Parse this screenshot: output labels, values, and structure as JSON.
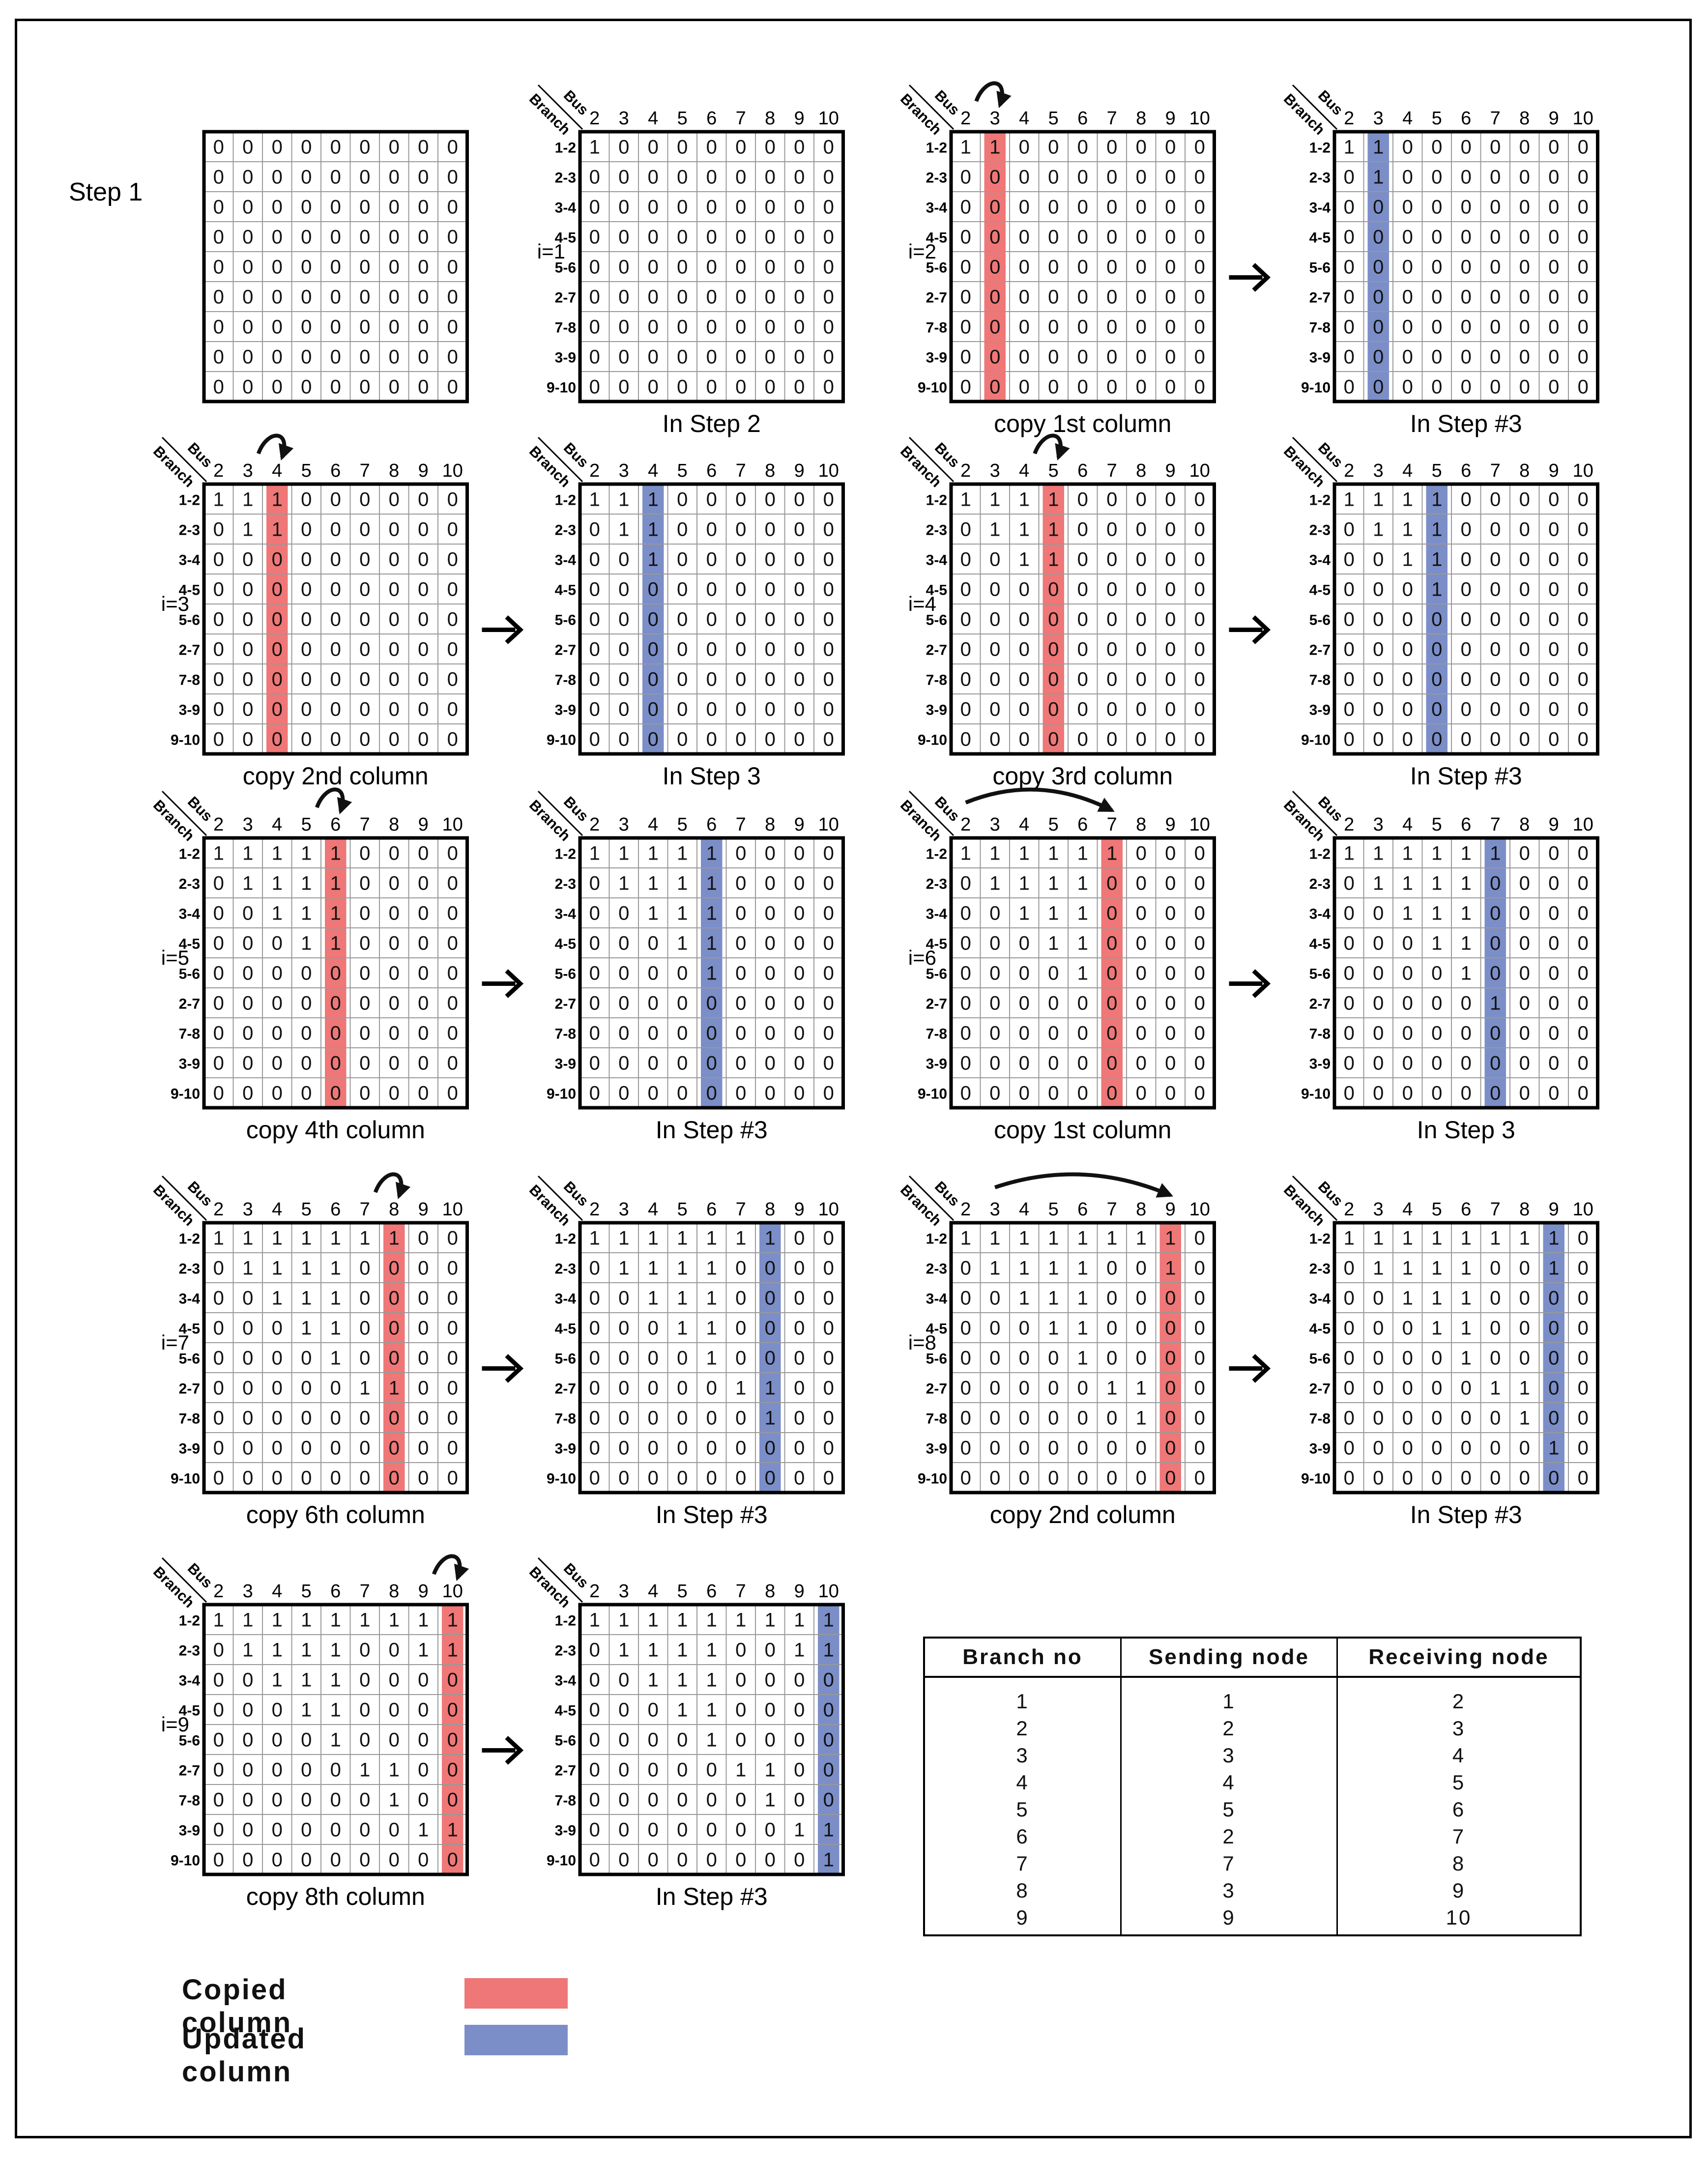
{
  "figure": {
    "step1_label": "Step 1",
    "bus_label": "Bus",
    "branch_label": "Branch",
    "bus_numbers": [
      "2",
      "3",
      "4",
      "5",
      "6",
      "7",
      "8",
      "9",
      "10"
    ],
    "branch_labels": [
      "1-2",
      "2-3",
      "3-4",
      "4-5",
      "5-6",
      "2-7",
      "7-8",
      "3-9",
      "9-10"
    ],
    "cell_values": {
      "zero": "0",
      "one": "1"
    }
  },
  "matrices": [
    {
      "id": "step1",
      "row": 0,
      "col": 0,
      "i": "",
      "caption": "",
      "axes": false,
      "highlight": null,
      "hl_type": null,
      "curve": null,
      "rows": [
        "000000000",
        "000000000",
        "000000000",
        "000000000",
        "000000000",
        "000000000",
        "000000000",
        "000000000",
        "000000000"
      ]
    },
    {
      "id": "i1",
      "row": 0,
      "col": 1,
      "i": "i=1",
      "caption": "In Step 2",
      "axes": true,
      "highlight": null,
      "hl_type": null,
      "curve": null,
      "rows": [
        "100000000",
        "000000000",
        "000000000",
        "000000000",
        "000000000",
        "000000000",
        "000000000",
        "000000000",
        "000000000"
      ]
    },
    {
      "id": "i2-copy",
      "row": 0,
      "col": 2,
      "i": "i=2",
      "caption": "copy 1st column",
      "axes": true,
      "highlight": 1,
      "hl_type": "copied",
      "curve": [
        1,
        1
      ],
      "rows": [
        "110000000",
        "000000000",
        "000000000",
        "000000000",
        "000000000",
        "000000000",
        "000000000",
        "000000000",
        "000000000"
      ]
    },
    {
      "id": "i2-upd",
      "row": 0,
      "col": 3,
      "i": "",
      "caption": "In Step #3",
      "axes": true,
      "highlight": 1,
      "hl_type": "updated",
      "curve": null,
      "rows": [
        "110000000",
        "010000000",
        "000000000",
        "000000000",
        "000000000",
        "000000000",
        "000000000",
        "000000000",
        "000000000"
      ]
    },
    {
      "id": "i3-copy",
      "row": 1,
      "col": 0,
      "i": "i=3",
      "caption": "copy 2nd column",
      "axes": true,
      "highlight": 2,
      "hl_type": "copied",
      "curve": [
        2,
        2
      ],
      "rows": [
        "111000000",
        "011000000",
        "000000000",
        "000000000",
        "000000000",
        "000000000",
        "000000000",
        "000000000",
        "000000000"
      ]
    },
    {
      "id": "i3-upd",
      "row": 1,
      "col": 1,
      "i": "",
      "caption": "In Step 3",
      "axes": true,
      "highlight": 2,
      "hl_type": "updated",
      "curve": null,
      "rows": [
        "111000000",
        "011000000",
        "001000000",
        "000000000",
        "000000000",
        "000000000",
        "000000000",
        "000000000",
        "000000000"
      ]
    },
    {
      "id": "i4-copy",
      "row": 1,
      "col": 2,
      "i": "i=4",
      "caption": "copy 3rd column",
      "axes": true,
      "highlight": 3,
      "hl_type": "copied",
      "curve": [
        3,
        3
      ],
      "rows": [
        "111100000",
        "011100000",
        "001100000",
        "000000000",
        "000000000",
        "000000000",
        "000000000",
        "000000000",
        "000000000"
      ]
    },
    {
      "id": "i4-upd",
      "row": 1,
      "col": 3,
      "i": "",
      "caption": "In Step #3",
      "axes": true,
      "highlight": 3,
      "hl_type": "updated",
      "curve": null,
      "rows": [
        "111100000",
        "011100000",
        "001100000",
        "000100000",
        "000000000",
        "000000000",
        "000000000",
        "000000000",
        "000000000"
      ]
    },
    {
      "id": "i5-copy",
      "row": 2,
      "col": 0,
      "i": "i=5",
      "caption": "copy 4th column",
      "axes": true,
      "highlight": 4,
      "hl_type": "copied",
      "curve": [
        4,
        4
      ],
      "rows": [
        "111110000",
        "011110000",
        "001110000",
        "000110000",
        "000000000",
        "000000000",
        "000000000",
        "000000000",
        "000000000"
      ]
    },
    {
      "id": "i5-upd",
      "row": 2,
      "col": 1,
      "i": "",
      "caption": "In Step #3",
      "axes": true,
      "highlight": 4,
      "hl_type": "updated",
      "curve": null,
      "rows": [
        "111110000",
        "011110000",
        "001110000",
        "000110000",
        "000010000",
        "000000000",
        "000000000",
        "000000000",
        "000000000"
      ]
    },
    {
      "id": "i6-copy",
      "row": 2,
      "col": 2,
      "i": "i=6",
      "caption": "copy 1st column",
      "axes": true,
      "highlight": 5,
      "hl_type": "copied",
      "curve": [
        0,
        5
      ],
      "rows": [
        "111111000",
        "011110000",
        "001110000",
        "000110000",
        "000010000",
        "000000000",
        "000000000",
        "000000000",
        "000000000"
      ]
    },
    {
      "id": "i6-upd",
      "row": 2,
      "col": 3,
      "i": "",
      "caption": "In Step 3",
      "axes": true,
      "highlight": 5,
      "hl_type": "updated",
      "curve": null,
      "rows": [
        "111111000",
        "011110000",
        "001110000",
        "000110000",
        "000010000",
        "000001000",
        "000000000",
        "000000000",
        "000000000"
      ]
    },
    {
      "id": "i7-copy",
      "row": 3,
      "col": 0,
      "i": "i=7",
      "caption": "copy 6th column",
      "axes": true,
      "highlight": 6,
      "hl_type": "copied",
      "curve": [
        6,
        6
      ],
      "rows": [
        "111111100",
        "011110000",
        "001110000",
        "000110000",
        "000010000",
        "000001100",
        "000000000",
        "000000000",
        "000000000"
      ]
    },
    {
      "id": "i7-upd",
      "row": 3,
      "col": 1,
      "i": "",
      "caption": "In Step #3",
      "axes": true,
      "highlight": 6,
      "hl_type": "updated",
      "curve": null,
      "rows": [
        "111111100",
        "011110000",
        "001110000",
        "000110000",
        "000010000",
        "000001100",
        "000000100",
        "000000000",
        "000000000"
      ]
    },
    {
      "id": "i8-copy",
      "row": 3,
      "col": 2,
      "i": "i=8",
      "caption": "copy 2nd column",
      "axes": true,
      "highlight": 7,
      "hl_type": "copied",
      "curve": [
        1,
        7
      ],
      "rows": [
        "111111110",
        "011110010",
        "001110000",
        "000110000",
        "000010000",
        "000001100",
        "000000100",
        "000000000",
        "000000000"
      ]
    },
    {
      "id": "i8-upd",
      "row": 3,
      "col": 3,
      "i": "",
      "caption": "In Step #3",
      "axes": true,
      "highlight": 7,
      "hl_type": "updated",
      "curve": null,
      "rows": [
        "111111110",
        "011110010",
        "001110000",
        "000110000",
        "000010000",
        "000001100",
        "000000100",
        "000000010",
        "000000000"
      ]
    },
    {
      "id": "i9-copy",
      "row": 4,
      "col": 0,
      "i": "i=9",
      "caption": "copy 8th column",
      "axes": true,
      "highlight": 8,
      "hl_type": "copied",
      "curve": [
        8,
        8
      ],
      "rows": [
        "111111111",
        "011110011",
        "001110000",
        "000110000",
        "000010000",
        "000001100",
        "000000100",
        "000000011",
        "000000000"
      ]
    },
    {
      "id": "i9-upd",
      "row": 4,
      "col": 1,
      "i": "",
      "caption": "In Step #3",
      "axes": true,
      "highlight": 8,
      "hl_type": "updated",
      "curve": null,
      "rows": [
        "111111111",
        "011110011",
        "001110000",
        "000110000",
        "000010000",
        "000001100",
        "000000100",
        "000000011",
        "000000001"
      ]
    }
  ],
  "arrows": [
    {
      "row": 0,
      "col": 2
    },
    {
      "row": 1,
      "col": 0
    },
    {
      "row": 1,
      "col": 2
    },
    {
      "row": 2,
      "col": 0
    },
    {
      "row": 2,
      "col": 2
    },
    {
      "row": 3,
      "col": 0
    },
    {
      "row": 3,
      "col": 2
    },
    {
      "row": 4,
      "col": 0
    }
  ],
  "legend": {
    "copied_label": "Copied column",
    "updated_label": "Updated column",
    "copied_color": "#ef7777",
    "updated_color": "#7b8ec8"
  },
  "table": {
    "headers": [
      "Branch no",
      "Sending node",
      "Receiving node"
    ],
    "rows": [
      [
        "1",
        "1",
        "2"
      ],
      [
        "2",
        "2",
        "3"
      ],
      [
        "3",
        "3",
        "4"
      ],
      [
        "4",
        "4",
        "5"
      ],
      [
        "5",
        "5",
        "6"
      ],
      [
        "6",
        "2",
        "7"
      ],
      [
        "7",
        "7",
        "8"
      ],
      [
        "8",
        "3",
        "9"
      ],
      [
        "9",
        "9",
        "10"
      ]
    ]
  }
}
